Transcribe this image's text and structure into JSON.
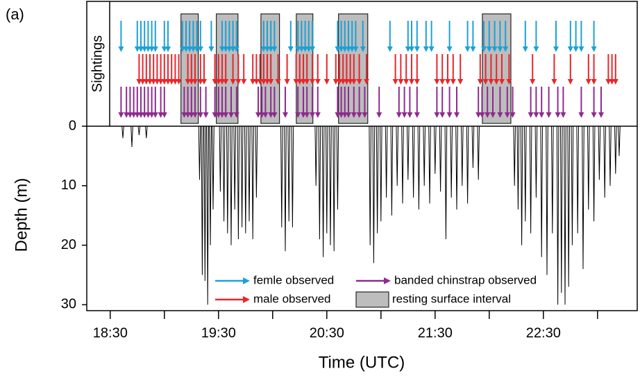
{
  "chart_data": {
    "type": "line",
    "panel_label": "(a)",
    "sightings_label": "Sightings",
    "xlabel": "Time (UTC)",
    "ylabel": "Depth (m)",
    "xlim": [
      1097,
      1402
    ],
    "xticks": [
      {
        "value": 1110,
        "label": "18:30"
      },
      {
        "value": 1170,
        "label": "19:30"
      },
      {
        "value": 1230,
        "label": "20:30"
      },
      {
        "value": 1290,
        "label": "21:30"
      },
      {
        "value": 1350,
        "label": "22:30"
      }
    ],
    "xminorticks": [
      1140,
      1200,
      1260,
      1320,
      1380
    ],
    "ylim": [
      0,
      31
    ],
    "invert_y": true,
    "yticks": [
      0,
      10,
      20,
      30
    ],
    "depth": {
      "color": "#000000",
      "x": [
        1110,
        1116.5,
        1117,
        1117.5,
        1121.5,
        1122,
        1122.5,
        1125.5,
        1126,
        1126.5,
        1129.5,
        1130,
        1130.5,
        1159,
        1159.5,
        1160,
        1160.5,
        1161,
        1161.5,
        1162,
        1162.5,
        1163,
        1163.5,
        1164,
        1164.5,
        1165,
        1165.5,
        1166,
        1166.5,
        1167,
        1167.5,
        1170.5,
        1171,
        1171.5,
        1172.5,
        1173,
        1173.5,
        1174.5,
        1175,
        1175.5,
        1176.5,
        1177,
        1177.5,
        1178.5,
        1179,
        1179.5,
        1180.5,
        1181,
        1181.5,
        1182.5,
        1183,
        1183.5,
        1184.5,
        1185,
        1185.5,
        1186.5,
        1187,
        1187.5,
        1188.5,
        1189,
        1189.5,
        1190.5,
        1191,
        1191.5,
        1204.5,
        1205,
        1205.5,
        1206.5,
        1207,
        1207.5,
        1208.5,
        1209,
        1209.5,
        1210.5,
        1211,
        1211.5,
        1223.5,
        1224,
        1224.5,
        1225.5,
        1226,
        1226.5,
        1227.5,
        1228,
        1228.5,
        1229.5,
        1230,
        1230.5,
        1231.5,
        1232,
        1232.5,
        1233.5,
        1234,
        1234.5,
        1235.5,
        1236,
        1236.5,
        1253.5,
        1254,
        1254.5,
        1255.5,
        1256,
        1256.5,
        1257.5,
        1258,
        1258.5,
        1259.5,
        1260,
        1260.5,
        1262.5,
        1263,
        1263.5,
        1265.5,
        1266,
        1266.5,
        1268.5,
        1269,
        1269.5,
        1271.5,
        1272,
        1272.5,
        1274.5,
        1275,
        1275.5,
        1277.5,
        1278,
        1278.5,
        1280.5,
        1281,
        1281.5,
        1283.5,
        1284,
        1284.5,
        1286.5,
        1287,
        1287.5,
        1289.5,
        1290,
        1290.5,
        1292.5,
        1293,
        1293.5,
        1295.5,
        1296,
        1296.5,
        1298.5,
        1299,
        1299.5,
        1301.5,
        1302,
        1302.5,
        1304.5,
        1305,
        1305.5,
        1307.5,
        1308,
        1308.5,
        1310.5,
        1311,
        1311.5,
        1313.5,
        1314,
        1314.5,
        1333.5,
        1334,
        1334.5,
        1335.5,
        1336,
        1336.5,
        1337.5,
        1338,
        1338.5,
        1339.5,
        1340,
        1340.5,
        1342.5,
        1343,
        1343.5,
        1345.5,
        1346,
        1346.5,
        1348.5,
        1349,
        1349.5,
        1351.5,
        1352,
        1352.5,
        1354.5,
        1355,
        1355.5,
        1357.5,
        1358,
        1358.5,
        1359.5,
        1360,
        1360.5,
        1361.5,
        1362,
        1362.5,
        1363.5,
        1364,
        1364.5,
        1365.5,
        1366,
        1366.5,
        1368.5,
        1369,
        1369.5,
        1371.5,
        1372,
        1372.5,
        1374.5,
        1375,
        1375.5,
        1377.5,
        1378,
        1378.5,
        1380.5,
        1381,
        1381.5,
        1383.5,
        1384,
        1384.5,
        1386.5,
        1387,
        1387.5,
        1389.5,
        1390,
        1390.5,
        1391.5,
        1392,
        1392.5,
        1395
      ],
      "values": [
        0,
        0,
        2,
        0,
        0,
        3.5,
        0,
        0,
        1.5,
        0,
        0,
        2,
        0,
        0,
        9,
        0,
        0,
        25,
        0,
        0,
        26,
        0,
        0,
        30,
        0,
        0,
        20,
        0,
        0,
        14,
        0,
        0,
        11,
        0,
        0,
        16,
        0,
        0,
        18,
        0,
        0,
        20,
        0,
        0,
        14,
        0,
        0,
        19,
        0,
        0,
        17,
        0,
        0,
        18,
        0,
        0,
        16,
        0,
        0,
        19,
        0,
        0,
        12,
        0,
        0,
        17,
        0,
        0,
        21,
        0,
        0,
        16,
        0,
        0,
        17,
        0,
        0,
        10,
        0,
        0,
        19,
        0,
        0,
        22,
        0,
        0,
        18,
        0,
        0,
        20,
        0,
        0,
        21,
        0,
        0,
        14,
        0,
        0,
        20,
        0,
        0,
        23,
        0,
        0,
        18,
        0,
        0,
        16,
        0,
        0,
        12,
        0,
        0,
        15,
        0,
        0,
        10,
        0,
        0,
        13,
        0,
        0,
        9,
        0,
        0,
        12,
        0,
        0,
        14,
        0,
        0,
        10,
        0,
        0,
        13,
        0,
        0,
        8,
        0,
        0,
        11,
        0,
        0,
        19,
        0,
        0,
        12,
        0,
        0,
        14,
        0,
        0,
        10,
        0,
        0,
        13,
        0,
        0,
        7,
        0,
        0,
        9,
        0,
        0,
        10,
        0,
        0,
        14,
        0,
        0,
        20,
        0,
        0,
        16,
        0,
        0,
        18,
        0,
        0,
        12,
        0,
        0,
        22,
        0,
        0,
        25,
        0,
        0,
        18,
        0,
        0,
        30,
        0,
        0,
        28,
        0,
        0,
        30,
        0,
        0,
        27,
        0,
        0,
        20,
        0,
        0,
        18,
        0,
        0,
        24,
        0,
        0,
        14,
        0,
        0,
        16,
        0,
        0,
        9,
        0,
        0,
        12,
        0,
        0,
        10,
        0,
        0,
        8,
        0,
        0,
        5,
        0,
        0
      ]
    },
    "sightings": [
      {
        "name": "femle observed",
        "color": "#1ba1d8",
        "x": [
          1116,
          1125,
          1127,
          1129,
          1131,
          1133,
          1135,
          1140,
          1142,
          1150,
          1152,
          1154,
          1156,
          1158,
          1160,
          1166,
          1172,
          1174,
          1176,
          1178,
          1180,
          1195,
          1197,
          1199,
          1201,
          1210,
          1214,
          1216,
          1218,
          1220,
          1222,
          1236,
          1238,
          1240,
          1242,
          1244,
          1246,
          1250,
          1265,
          1275,
          1277,
          1280,
          1285,
          1288,
          1298,
          1308,
          1311,
          1317,
          1320,
          1323,
          1326,
          1329,
          1340,
          1346,
          1357,
          1365,
          1368,
          1371,
          1378
        ]
      },
      {
        "name": "male observed",
        "color": "#e8262b",
        "x": [
          1126,
          1128,
          1130,
          1132,
          1134,
          1136,
          1138,
          1140,
          1142,
          1144,
          1146,
          1148,
          1153,
          1155,
          1157,
          1160,
          1162,
          1168,
          1170,
          1172,
          1174,
          1178,
          1181,
          1184,
          1189,
          1191,
          1193,
          1195,
          1197,
          1199,
          1203,
          1208,
          1213,
          1215,
          1217,
          1219,
          1222,
          1225,
          1230,
          1235,
          1237,
          1239,
          1241,
          1243,
          1245,
          1248,
          1252,
          1268,
          1271,
          1274,
          1277,
          1280,
          1291,
          1294,
          1297,
          1300,
          1304,
          1315,
          1318,
          1321,
          1324,
          1327,
          1331,
          1344,
          1356,
          1365,
          1375,
          1378,
          1386,
          1388,
          1390
        ]
      },
      {
        "name": "banded chinstrap observed",
        "color": "#8e2b8e",
        "x": [
          1116,
          1119,
          1121,
          1123,
          1125,
          1127,
          1129,
          1131,
          1133,
          1135,
          1138,
          1140,
          1151,
          1153,
          1155,
          1157,
          1160,
          1163,
          1168,
          1170,
          1172,
          1174,
          1177,
          1180,
          1192,
          1194,
          1196,
          1199,
          1201,
          1207,
          1214,
          1217,
          1219,
          1222,
          1225,
          1236,
          1238,
          1240,
          1242,
          1245,
          1248,
          1251,
          1259,
          1270,
          1273,
          1276,
          1280,
          1291,
          1294,
          1298,
          1302,
          1314,
          1316,
          1319,
          1322,
          1326,
          1330,
          1333,
          1343,
          1346,
          1349,
          1353,
          1358,
          1361,
          1371,
          1378,
          1382
        ]
      }
    ],
    "resting_intervals": {
      "name": "resting surface interval",
      "color": "#bdbdbd",
      "x_start": [
        1149.2,
        1168.8,
        1193.5,
        1213.1,
        1236.5,
        1316.2
      ],
      "x_end": [
        1158.8,
        1180.8,
        1203.8,
        1222.3,
        1252.7,
        1332.0
      ]
    }
  }
}
